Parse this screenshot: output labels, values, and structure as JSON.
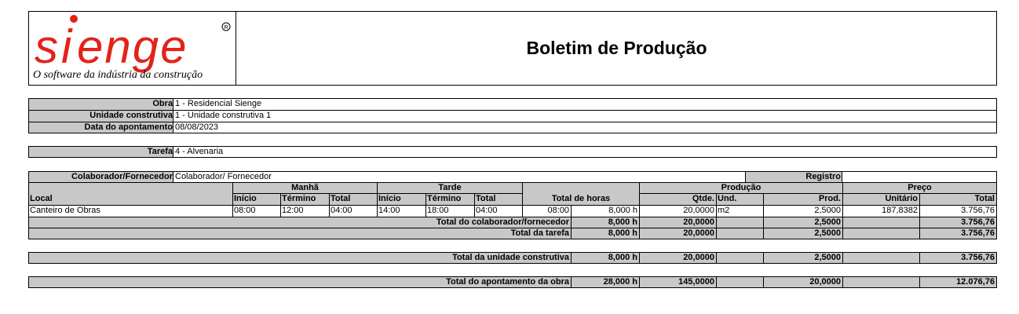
{
  "header": {
    "logo_text": "SIENGE",
    "logo_tagline": "O software da indústria da construção",
    "title": "Boletim de Produção"
  },
  "info": {
    "obra_label": "Obra",
    "obra_value": "1 - Residencial Sienge",
    "unidade_label": "Unidade construtiva",
    "unidade_value": "1 - Unidade construtiva 1",
    "data_label": "Data do apontamento",
    "data_value": "08/08/2023",
    "tarefa_label": "Tarefa",
    "tarefa_value": "4 - Alvenaria"
  },
  "table": {
    "colab_label": "Colaborador/Fornecedor",
    "colab_value": "Colaborador/ Fornecedor",
    "registro_label": "Registro",
    "registro_value": "",
    "groups": {
      "manha": "Manhã",
      "tarde": "Tarde",
      "total_horas": "Total de horas",
      "producao": "Produção",
      "preco": "Preço"
    },
    "columns": {
      "local": "Local",
      "inicio": "Início",
      "termino": "Término",
      "total": "Total",
      "qtde": "Qtde.",
      "und": "Und.",
      "prod": "Prod.",
      "unitario": "Unitário",
      "preco_total": "Total"
    },
    "row": {
      "local": "Canteiro de Obras",
      "manha_inicio": "08:00",
      "manha_termino": "12:00",
      "manha_total": "04:00",
      "tarde_inicio": "14:00",
      "tarde_termino": "18:00",
      "tarde_total": "04:00",
      "horas_hhmm": "08:00",
      "horas_h": "8,000 h",
      "qtde": "20,0000",
      "und": "m2",
      "prod": "2,5000",
      "unitario": "187,8382",
      "total": "3.756,76"
    },
    "total_colab": {
      "label": "Total do colaborador/fornecedor",
      "horas": "8,000 h",
      "qtde": "20,0000",
      "prod": "2,5000",
      "total": "3.756,76"
    },
    "total_tarefa": {
      "label": "Total da tarefa",
      "horas": "8,000 h",
      "qtde": "20,0000",
      "prod": "2,5000",
      "total": "3.756,76"
    }
  },
  "total_unidade": {
    "label": "Total da unidade construtiva",
    "horas": "8,000 h",
    "qtde": "20,0000",
    "prod": "2,5000",
    "total": "3.756,76"
  },
  "total_obra": {
    "label": "Total do apontamento da obra",
    "horas": "28,000 h",
    "qtde": "145,0000",
    "prod": "20,0000",
    "total": "12.076,76"
  },
  "colors": {
    "logo_red": "#e2231a",
    "header_gray": "#c8c8c8"
  }
}
